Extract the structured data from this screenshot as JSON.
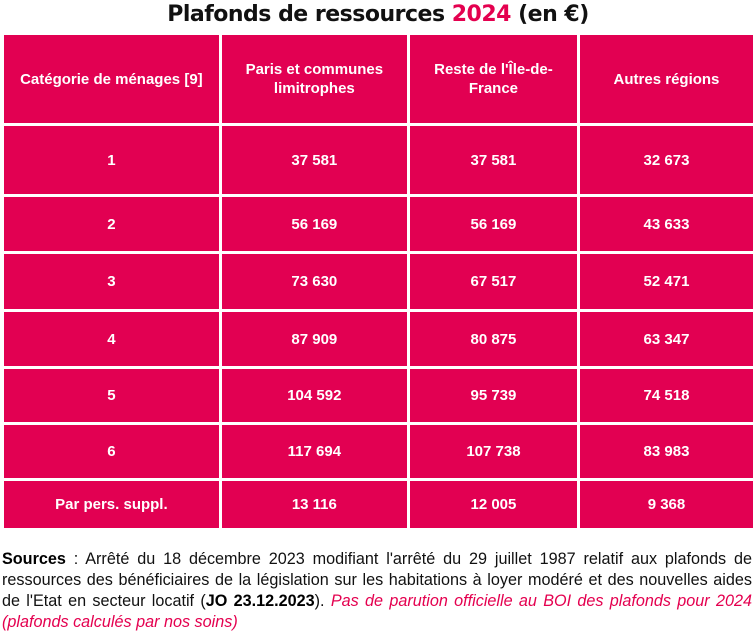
{
  "title": {
    "prefix": "Plafonds de ressources",
    "year": "2024",
    "suffix": "(en €)"
  },
  "table": {
    "headers": [
      "Catégorie de ménages [9]",
      "Paris et communes limitrophes",
      "Reste de l'Île-de-France",
      "Autres régions"
    ],
    "rows": [
      [
        "1",
        "37 581",
        "37 581",
        "32 673"
      ],
      [
        "2",
        "56 169",
        "56 169",
        "43 633"
      ],
      [
        "3",
        "73 630",
        "67 517",
        "52 471"
      ],
      [
        "4",
        "87 909",
        "80 875",
        "63 347"
      ],
      [
        "5",
        "104 592",
        "95 739",
        "74 518"
      ],
      [
        "6",
        "117 694",
        "107 738",
        "83 983"
      ],
      [
        "Par pers. suppl.",
        "13 116",
        "12 005",
        "9 368"
      ]
    ]
  },
  "colors": {
    "accent": "#e20052"
  },
  "note": {
    "label": "Sources",
    "text": " : Arrêté du 18 décembre 2023 modifiant l'arrêté du 29 juillet 1987 relatif aux plafonds de ressources des bénéficiaires de la législation sur les habitations à loyer modéré et des nouvelles aides de l'Etat en secteur locatif (",
    "jo": "JO 23.12.2023",
    "after": "). ",
    "italic": "Pas de parution officielle au BOI des plafonds pour 2024 (plafonds calculés par nos soins)"
  }
}
